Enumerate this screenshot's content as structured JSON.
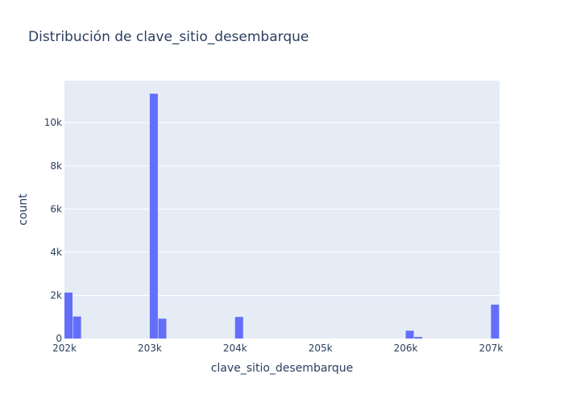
{
  "chart_data": {
    "type": "bar",
    "title": "Distribución de clave_sitio_desembarque",
    "xlabel": "clave_sitio_desembarque",
    "ylabel": "count",
    "xlim": [
      202000,
      207100
    ],
    "ylim": [
      0,
      11950
    ],
    "grid": true,
    "x_ticks": [
      {
        "value": 202000,
        "label": "202k"
      },
      {
        "value": 203000,
        "label": "203k"
      },
      {
        "value": 204000,
        "label": "204k"
      },
      {
        "value": 205000,
        "label": "205k"
      },
      {
        "value": 206000,
        "label": "206k"
      },
      {
        "value": 207000,
        "label": "207k"
      }
    ],
    "y_ticks": [
      {
        "value": 0,
        "label": "0"
      },
      {
        "value": 2000,
        "label": "2k"
      },
      {
        "value": 4000,
        "label": "4k"
      },
      {
        "value": 6000,
        "label": "6k"
      },
      {
        "value": 8000,
        "label": "8k"
      },
      {
        "value": 10000,
        "label": "10k"
      }
    ],
    "bin_width": 100,
    "bins": [
      {
        "start": 202000,
        "count": 2130
      },
      {
        "start": 202100,
        "count": 1020
      },
      {
        "start": 203000,
        "count": 11340
      },
      {
        "start": 203100,
        "count": 920
      },
      {
        "start": 204000,
        "count": 1000
      },
      {
        "start": 206000,
        "count": 360
      },
      {
        "start": 206100,
        "count": 70
      },
      {
        "start": 207000,
        "count": 1570
      }
    ],
    "colors": {
      "bar": "#636efa",
      "plot_bg": "#e5ecf6",
      "grid": "#ffffff",
      "text": "#2a3f5f"
    }
  }
}
